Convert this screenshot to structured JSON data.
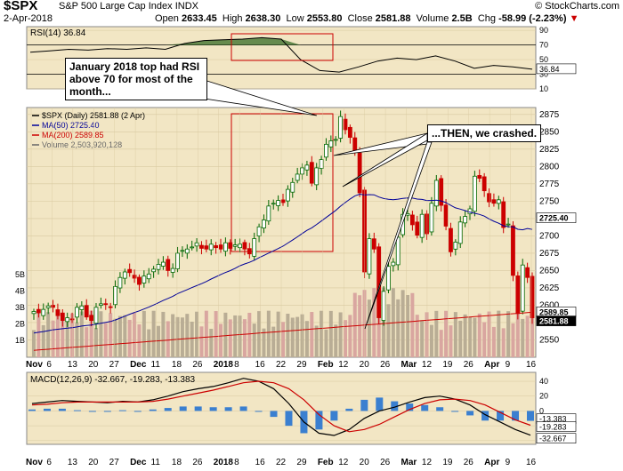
{
  "header": {
    "symbol": "$SPX",
    "name": "S&P 500 Large Cap Index",
    "exchange": "INDX",
    "brand": "© StockCharts.com",
    "date": "2-Apr-2018",
    "open_label": "Open",
    "open": "2633.45",
    "high_label": "High",
    "high": "2638.30",
    "low_label": "Low",
    "low": "2553.80",
    "close_label": "Close",
    "close": "2581.88",
    "volume_label": "Volume",
    "volume": "2.5B",
    "chg_label": "Chg",
    "chg": "-58.99 (-2.23%)"
  },
  "annotations": {
    "rsi_note": "January 2018 top had RSI above 70 for most of the month...",
    "crash_note": "...THEN, we crashed."
  },
  "colors": {
    "panel_bg": "#f2e6c4",
    "up": "#006600",
    "down": "#cc0000",
    "ma50": "#000099",
    "ma200": "#cc0000",
    "macd_hist": "#3a7fd0",
    "rsi_fill": "#4e7a3a",
    "box": "#cc0000"
  },
  "chart_data": [
    {
      "type": "line",
      "title": "RSI(14) 36.84",
      "label": "RSI(14) 36.84",
      "ylim": [
        10,
        95
      ],
      "yticks": [
        "90",
        "70",
        "50",
        "30",
        "10"
      ],
      "last_value": "36.84",
      "x": [
        "2017-11-06",
        "2017-11-13",
        "2017-11-20",
        "2017-11-27",
        "2017-12-04",
        "2017-12-11",
        "2017-12-18",
        "2017-12-25",
        "2018-01-02",
        "2018-01-08",
        "2018-01-16",
        "2018-01-22",
        "2018-01-26",
        "2018-01-29",
        "2018-02-01",
        "2018-02-05",
        "2018-02-08",
        "2018-02-12",
        "2018-02-20",
        "2018-02-26",
        "2018-03-05",
        "2018-03-12",
        "2018-03-19",
        "2018-03-23",
        "2018-03-26",
        "2018-03-29",
        "2018-04-02"
      ],
      "values": [
        60,
        62,
        64,
        63,
        65,
        64,
        66,
        64,
        72,
        76,
        77,
        78,
        80,
        78,
        50,
        35,
        33,
        40,
        48,
        52,
        50,
        55,
        48,
        38,
        42,
        40,
        36.84
      ]
    },
    {
      "type": "bar",
      "title": "$SPX (Daily) 2581.88 (2 Apr)",
      "legend": [
        "$SPX (Daily) 2581.88 (2 Apr)",
        "MA(50) 2725.40",
        "MA(200) 2589.85",
        "Volume 2,503,920,128"
      ],
      "ylim": [
        2525,
        2885
      ],
      "yticks": [
        "2875",
        "2850",
        "2825",
        "2800",
        "2775",
        "2750",
        "2725",
        "2700",
        "2675",
        "2650",
        "2625",
        "2600",
        "2575",
        "2550"
      ],
      "volume_ticks": [
        "5B",
        "4B",
        "3B",
        "2B",
        "1B"
      ],
      "xticks": [
        "Nov",
        "6",
        "13",
        "20",
        "27",
        "Dec",
        "11",
        "18",
        "26",
        "2018",
        "8",
        "16",
        "22",
        "29",
        "Feb",
        "12",
        "20",
        "26",
        "Mar",
        "12",
        "19",
        "26",
        "Apr",
        "9",
        "16"
      ],
      "value_tags": [
        "2725.40",
        "2589.85",
        "2581.88"
      ],
      "closes": [
        2591,
        2589,
        2594,
        2599,
        2597,
        2585,
        2578,
        2582,
        2579,
        2597,
        2599,
        2583,
        2578,
        2597,
        2602,
        2601,
        2597,
        2627,
        2640,
        2648,
        2647,
        2639,
        2630,
        2642,
        2645,
        2652,
        2659,
        2662,
        2650,
        2653,
        2675,
        2679,
        2681,
        2684,
        2690,
        2682,
        2681,
        2688,
        2683,
        2681,
        2690,
        2682,
        2687,
        2688,
        2681,
        2674,
        2696,
        2713,
        2723,
        2743,
        2747,
        2751,
        2748,
        2767,
        2777,
        2789,
        2798,
        2802,
        2776,
        2798,
        2810,
        2832,
        2837,
        2839,
        2872,
        2853,
        2842,
        2822,
        2762,
        2648,
        2696,
        2681,
        2582,
        2620,
        2656,
        2662,
        2698,
        2731,
        2732,
        2716,
        2701,
        2731,
        2703,
        2747,
        2780,
        2744,
        2714,
        2677,
        2691,
        2720,
        2728,
        2739,
        2786,
        2783,
        2765,
        2749,
        2747,
        2752,
        2712,
        2717,
        2643,
        2588,
        2658,
        2640,
        2581.88
      ],
      "ma50_last": 2725.4,
      "ma200_last": 2589.85
    },
    {
      "type": "line",
      "title": "MACD(12,26,9) -32.667, -19.283, -13.383",
      "label": "MACD(12,26,9) -32.667, -19.283, -13.383",
      "ylim": [
        -45,
        52
      ],
      "yticks": [
        "40",
        "20",
        "0",
        "-20",
        "-40"
      ],
      "value_tags": [
        "-13.383",
        "-19.283",
        "-32.667"
      ],
      "series": [
        {
          "name": "MACD",
          "values": [
            10,
            12,
            14,
            13,
            12,
            11,
            13,
            12,
            15,
            20,
            26,
            30,
            33,
            38,
            44,
            40,
            30,
            10,
            -15,
            -30,
            -33,
            -25,
            -10,
            0,
            5,
            12,
            18,
            20,
            16,
            8,
            -5,
            -15,
            -25,
            -32.667
          ]
        },
        {
          "name": "Signal",
          "values": [
            8,
            9,
            11,
            12,
            12,
            12,
            12,
            12,
            13,
            16,
            20,
            24,
            28,
            33,
            38,
            40,
            38,
            30,
            15,
            -5,
            -20,
            -28,
            -25,
            -18,
            -8,
            2,
            10,
            15,
            16,
            14,
            8,
            -2,
            -12,
            -19.283
          ]
        }
      ],
      "histogram": [
        2,
        3,
        3,
        1,
        0,
        -1,
        1,
        0,
        2,
        4,
        6,
        6,
        5,
        5,
        6,
        0,
        -8,
        -20,
        -30,
        -25,
        -13,
        3,
        15,
        18,
        13,
        10,
        8,
        5,
        0,
        -6,
        -13,
        -13,
        -13,
        -13.383
      ]
    }
  ]
}
